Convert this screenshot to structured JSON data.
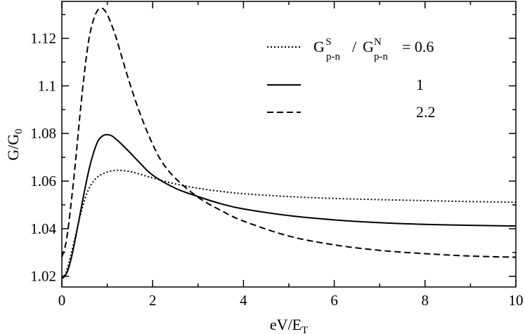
{
  "chart_data": {
    "type": "line",
    "xlabel": {
      "main": "eV/E",
      "sub": "T"
    },
    "ylabel": {
      "main": "G/G",
      "sub": "0"
    },
    "xlim": [
      0,
      10
    ],
    "ylim": [
      1.0155,
      1.1355
    ],
    "x_ticks": [
      0,
      2,
      4,
      6,
      8,
      10
    ],
    "x_tick_labels": [
      "0",
      "2",
      "4",
      "6",
      "8",
      "10"
    ],
    "y_ticks": [
      1.02,
      1.04,
      1.06,
      1.08,
      1.1,
      1.12
    ],
    "y_tick_labels": [
      "1.02",
      "1.04",
      "1.06",
      "1.08",
      "1.1",
      "1.12"
    ],
    "grid": false,
    "legend_position": "top-right",
    "legend": {
      "header": {
        "g1": "G",
        "sup1": "S",
        "sub1": "p-n",
        "slash": "/",
        "g2": "G",
        "sup2": "N",
        "sub2": "p-n",
        "eq": "= 0.6"
      },
      "labels": [
        "1",
        "2.2"
      ]
    },
    "series": [
      {
        "ratio": 0.6,
        "style": "dotted",
        "x": [
          0,
          0.1,
          0.2,
          0.3,
          0.4,
          0.5,
          0.6,
          0.7,
          0.8,
          0.9,
          1.0,
          1.1,
          1.2,
          1.3,
          1.5,
          1.7,
          2.0,
          2.5,
          3.0,
          3.5,
          4.0,
          5.0,
          6.0,
          7.0,
          8.0,
          9.0,
          10.0
        ],
        "y": [
          1.019,
          1.022,
          1.029,
          1.037,
          1.045,
          1.052,
          1.057,
          1.06,
          1.062,
          1.063,
          1.0638,
          1.0643,
          1.0645,
          1.0645,
          1.064,
          1.063,
          1.0613,
          1.0588,
          1.057,
          1.0557,
          1.0547,
          1.0535,
          1.0527,
          1.0522,
          1.0518,
          1.0514,
          1.0511
        ]
      },
      {
        "ratio": 1,
        "style": "solid",
        "x": [
          0,
          0.1,
          0.2,
          0.3,
          0.4,
          0.5,
          0.6,
          0.7,
          0.8,
          0.9,
          1.0,
          1.1,
          1.2,
          1.3,
          1.5,
          1.7,
          2.0,
          2.5,
          3.0,
          3.5,
          4.0,
          5.0,
          6.0,
          7.0,
          8.0,
          9.0,
          10.0
        ],
        "y": [
          1.019,
          1.021,
          1.027,
          1.036,
          1.046,
          1.056,
          1.065,
          1.072,
          1.077,
          1.079,
          1.0795,
          1.079,
          1.0775,
          1.0758,
          1.072,
          1.068,
          1.0625,
          1.057,
          1.0535,
          1.0505,
          1.0483,
          1.0455,
          1.0437,
          1.0425,
          1.0418,
          1.0414,
          1.0411
        ]
      },
      {
        "ratio": 2.2,
        "style": "dashed",
        "x": [
          0,
          0.1,
          0.2,
          0.3,
          0.4,
          0.5,
          0.6,
          0.7,
          0.8,
          0.9,
          1.0,
          1.1,
          1.2,
          1.4,
          1.6,
          1.8,
          2.0,
          2.2,
          2.5,
          3.0,
          3.5,
          4.0,
          5.0,
          6.0,
          7.0,
          8.0,
          9.0,
          10.0
        ],
        "y": [
          1.028,
          1.035,
          1.05,
          1.068,
          1.088,
          1.106,
          1.12,
          1.128,
          1.132,
          1.1325,
          1.13,
          1.1255,
          1.12,
          1.107,
          1.095,
          1.0845,
          1.0755,
          1.0682,
          1.0612,
          1.0532,
          1.0477,
          1.0432,
          1.0369,
          1.0332,
          1.0309,
          1.0295,
          1.0285,
          1.028
        ]
      }
    ]
  }
}
